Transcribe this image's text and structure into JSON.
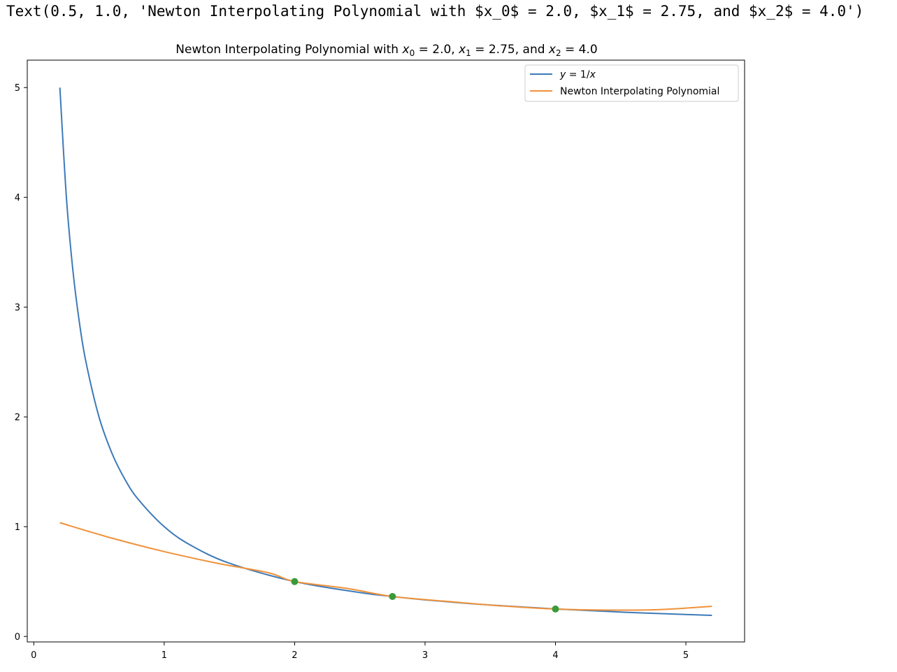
{
  "output_repr": "Text(0.5, 1.0, 'Newton Interpolating Polynomial with $x_0$ = 2.0, $x_1$ = 2.75, and $x_2$ = 4.0')",
  "chart_data": {
    "type": "line",
    "title": {
      "prefix": "Newton Interpolating Polynomial with ",
      "x0_label": "x",
      "x0_sub": "0",
      "x0_value": " = 2.0, ",
      "x1_label": "x",
      "x1_sub": "1",
      "x1_value": " = 2.75, and ",
      "x2_label": "x",
      "x2_sub": "2",
      "x2_value": " = 4.0"
    },
    "xlabel": "",
    "ylabel": "",
    "xlim": [
      -0.05,
      5.45
    ],
    "ylim": [
      -0.05,
      5.25
    ],
    "x_ticks": [
      0,
      1,
      2,
      3,
      4,
      5
    ],
    "y_ticks": [
      0,
      1,
      2,
      3,
      4,
      5
    ],
    "x_tick_labels": [
      "0",
      "1",
      "2",
      "3",
      "4",
      "5"
    ],
    "y_tick_labels": [
      "0",
      "1",
      "2",
      "3",
      "4",
      "5"
    ],
    "grid": false,
    "legend_position": "top-right",
    "series": [
      {
        "name": "y = 1/x",
        "color": "#3d7ab8",
        "x": [
          0.2,
          0.25,
          0.3,
          0.35,
          0.4,
          0.5,
          0.6,
          0.7,
          0.8,
          1.0,
          1.2,
          1.5,
          2.0,
          2.5,
          2.75,
          3.0,
          3.5,
          4.0,
          4.5,
          5.0,
          5.2
        ],
        "y": [
          5.0,
          4.0,
          3.333,
          2.857,
          2.5,
          2.0,
          1.667,
          1.429,
          1.25,
          1.0,
          0.833,
          0.667,
          0.5,
          0.4,
          0.364,
          0.333,
          0.286,
          0.25,
          0.222,
          0.2,
          0.192
        ]
      },
      {
        "name": "Newton Interpolating Polynomial",
        "color": "#f0923a",
        "x": [
          0.2,
          0.6,
          1.0,
          1.4,
          1.8,
          2.0,
          2.4,
          2.75,
          3.2,
          3.6,
          4.0,
          4.4,
          4.8,
          5.2
        ],
        "y": [
          1.036,
          0.895,
          0.773,
          0.668,
          0.58,
          0.5,
          0.438,
          0.364,
          0.316,
          0.277,
          0.25,
          0.24,
          0.245,
          0.275
        ]
      }
    ],
    "points": {
      "color": "#3a9a3a",
      "x": [
        2.0,
        2.75,
        4.0
      ],
      "y": [
        0.5,
        0.364,
        0.25
      ]
    },
    "legend": [
      {
        "label_prefix": "y",
        "label_rest": " = 1/",
        "label_var": "x",
        "color": "#3d7ab8"
      },
      {
        "label": "Newton Interpolating Polynomial",
        "color": "#f0923a"
      }
    ]
  }
}
